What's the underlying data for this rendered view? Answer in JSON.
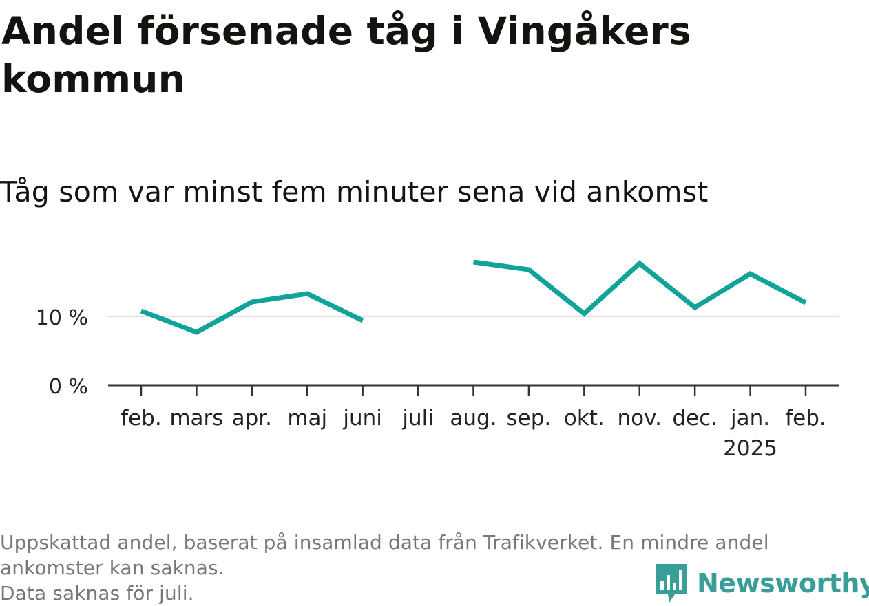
{
  "title": "Andel försenade tåg i Vingåkers kommun",
  "subtitle": "Tåg som var minst fem minuter sena vid ankomst",
  "footnote": {
    "line1": "Uppskattad andel, baserat på insamlad data från Trafikverket. En mindre andel",
    "line2": "ankomster kan saknas.",
    "line3": "Data saknas för juli."
  },
  "brand": {
    "name": "Newsworthy",
    "color": "#3a9e98",
    "icon": "bar-chart-speech-bubble-icon"
  },
  "colors": {
    "line": "#0fa39a",
    "axis": "#333333",
    "grid": "#dddddd"
  },
  "chart_data": {
    "type": "line",
    "categories": [
      "feb.",
      "mars",
      "apr.",
      "maj",
      "juni",
      "juli",
      "aug.",
      "sep.",
      "okt.",
      "nov.",
      "dec.",
      "jan.",
      "feb."
    ],
    "category_sublabels": [
      "",
      "",
      "",
      "",
      "",
      "",
      "",
      "",
      "",
      "",
      "",
      "2025",
      ""
    ],
    "series": [
      {
        "values": [
          10.8,
          7.7,
          12.1,
          13.3,
          9.4,
          null,
          17.9,
          16.8,
          10.4,
          17.7,
          11.3,
          16.2,
          12.0
        ]
      }
    ],
    "ylim": [
      0,
      20
    ],
    "yticks": [
      0,
      10
    ],
    "ytick_labels": [
      "0 %",
      "10 %"
    ],
    "xlabel": "",
    "ylabel": "",
    "grid": true
  }
}
